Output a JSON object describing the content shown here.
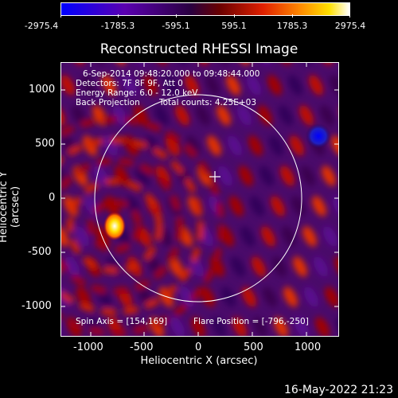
{
  "colorbar": {
    "ticks": [
      "-2975.4",
      "-1785.3",
      "-595.1",
      "595.1",
      "1785.3",
      "2975.4"
    ],
    "colors": [
      "#0000ff",
      "#5a00a0",
      "#3a0058",
      "#7a0000",
      "#e02000",
      "#ff8c00",
      "#ffe000",
      "#ffffff"
    ]
  },
  "title": "Reconstructed RHESSI Image",
  "info": {
    "line1": "6-Sep-2014 09:48:20.000 to 09:48:44.000",
    "line2": "Detectors: 7F 8F 9F, Att 0",
    "line3": "Energy Range: 6.0 - 12.0 keV",
    "line4": "Back Projection",
    "line5": "Total counts: 4.25E+03"
  },
  "footer": {
    "spin_axis": "Spin Axis = [154,169]",
    "flare_position": "Flare Position = [-796,-250]"
  },
  "axes": {
    "xlabel": "Heliocentric X (arcsec)",
    "ylabel": "Heliocentric Y (arcsec)",
    "xticks": [
      "-1000",
      "-500",
      "0",
      "500",
      "1000"
    ],
    "yticks": [
      "1000",
      "500",
      "0",
      "-500",
      "-1000"
    ]
  },
  "timestamp": "16-May-2022 21:23"
}
